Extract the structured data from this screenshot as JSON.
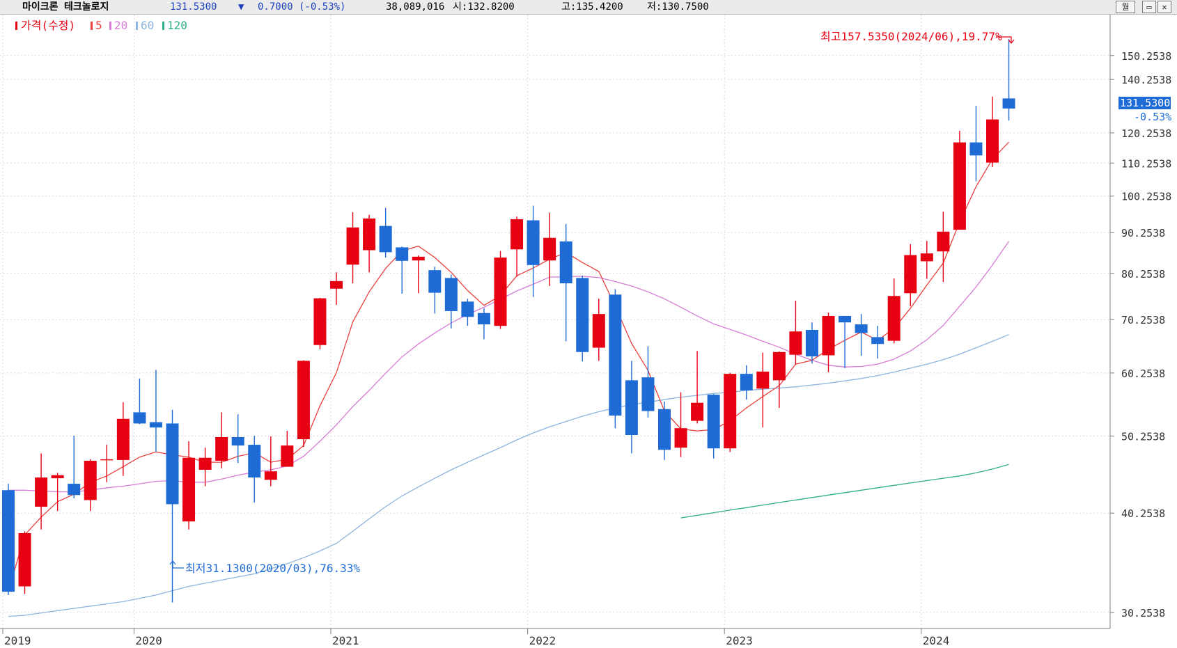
{
  "header": {
    "stock_name": "마이크론 테크놀로지",
    "price": "131.5300",
    "change_arrow": "▼",
    "change": "0.7000 (-0.53%)",
    "volume": "38,089,016",
    "open": "시:132.8200",
    "high": "고:135.4200",
    "low": "저:130.7500",
    "period_button": "월",
    "restore_button": "▭",
    "close_button": "✕"
  },
  "legend": {
    "price_label": "가격(수정)",
    "ma5": "5",
    "ma20": "20",
    "ma60": "60",
    "ma120": "120"
  },
  "colors": {
    "up": "#e60012",
    "down": "#1f6bd6",
    "ma5": "#e8403c",
    "ma20": "#d77bd6",
    "ma60": "#8db4de",
    "ma120": "#2fae8a",
    "axis_text": "#333333",
    "high_annotation": "#e60012",
    "low_annotation": "#1f6bd6"
  },
  "chart_data": {
    "type": "candlestick",
    "scale": "log",
    "grid": true,
    "legend_position": "top-left",
    "ylim": [
      29.5,
      170
    ],
    "y_ticks": [
      30.2538,
      40.2538,
      50.2538,
      60.2538,
      70.2538,
      80.2538,
      90.2538,
      100.2538,
      110.2538,
      120.2538,
      140.2538,
      150.2538
    ],
    "y_tick_labels": [
      "30.2538",
      "40.2538",
      "50.2538",
      "60.2538",
      "70.2538",
      "80.2538",
      "90.2538",
      "100.2538",
      "110.2538",
      "120.2538",
      "140.2538",
      "150.2538"
    ],
    "x_labels": [
      {
        "index": 0,
        "label": "2019"
      },
      {
        "index": 8,
        "label": "2020"
      },
      {
        "index": 20,
        "label": "2021"
      },
      {
        "index": 32,
        "label": "2022"
      },
      {
        "index": 44,
        "label": "2023"
      },
      {
        "index": 56,
        "label": "2024"
      }
    ],
    "current_price_label": "131.5300",
    "current_change_label": "-0.53%",
    "high_annotation": "최고157.5350(2024/06),19.77%",
    "low_annotation": "최저31.1300(2020/03),76.33%",
    "candles": [
      {
        "o": 43.0,
        "h": 43.8,
        "l": 31.8,
        "c": 32.1
      },
      {
        "o": 32.6,
        "h": 38.2,
        "l": 31.9,
        "c": 38.0
      },
      {
        "o": 41.0,
        "h": 47.8,
        "l": 38.4,
        "c": 44.6
      },
      {
        "o": 44.5,
        "h": 45.2,
        "l": 40.5,
        "c": 44.9
      },
      {
        "o": 43.8,
        "h": 50.3,
        "l": 42.0,
        "c": 42.4
      },
      {
        "o": 41.8,
        "h": 47.0,
        "l": 40.5,
        "c": 46.8
      },
      {
        "o": 46.9,
        "h": 49.0,
        "l": 44.0,
        "c": 47.0
      },
      {
        "o": 46.9,
        "h": 55.4,
        "l": 44.8,
        "c": 52.8
      },
      {
        "o": 53.8,
        "h": 59.3,
        "l": 52.0,
        "c": 52.1
      },
      {
        "o": 52.3,
        "h": 60.8,
        "l": 48.0,
        "c": 51.5
      },
      {
        "o": 52.1,
        "h": 54.2,
        "l": 31.13,
        "c": 41.3
      },
      {
        "o": 39.3,
        "h": 49.5,
        "l": 38.4,
        "c": 47.2
      },
      {
        "o": 45.6,
        "h": 48.6,
        "l": 43.5,
        "c": 47.2
      },
      {
        "o": 46.8,
        "h": 53.8,
        "l": 45.8,
        "c": 50.1
      },
      {
        "o": 50.1,
        "h": 53.5,
        "l": 46.5,
        "c": 48.9
      },
      {
        "o": 49.0,
        "h": 50.3,
        "l": 41.5,
        "c": 44.6
      },
      {
        "o": 44.3,
        "h": 50.2,
        "l": 43.5,
        "c": 45.4
      },
      {
        "o": 46.0,
        "h": 51.0,
        "l": 46.0,
        "c": 48.9
      },
      {
        "o": 49.8,
        "h": 62.5,
        "l": 48.7,
        "c": 62.4
      },
      {
        "o": 65.3,
        "h": 74.8,
        "l": 64.5,
        "c": 74.7
      },
      {
        "o": 76.8,
        "h": 80.5,
        "l": 73.3,
        "c": 78.5
      },
      {
        "o": 82.3,
        "h": 95.7,
        "l": 78.0,
        "c": 91.6
      },
      {
        "o": 85.8,
        "h": 95.0,
        "l": 80.5,
        "c": 94.0
      },
      {
        "o": 92.0,
        "h": 96.9,
        "l": 84.0,
        "c": 85.3
      },
      {
        "o": 86.5,
        "h": 86.7,
        "l": 75.7,
        "c": 83.2
      },
      {
        "o": 83.3,
        "h": 84.5,
        "l": 75.8,
        "c": 84.2
      },
      {
        "o": 81.0,
        "h": 81.8,
        "l": 71.5,
        "c": 75.9
      },
      {
        "o": 79.2,
        "h": 80.0,
        "l": 68.5,
        "c": 72.0
      },
      {
        "o": 74.0,
        "h": 74.6,
        "l": 69.0,
        "c": 70.8
      },
      {
        "o": 71.6,
        "h": 72.6,
        "l": 66.4,
        "c": 69.3
      },
      {
        "o": 69.0,
        "h": 85.6,
        "l": 68.4,
        "c": 84.0
      },
      {
        "o": 86.0,
        "h": 94.5,
        "l": 79.5,
        "c": 93.8
      },
      {
        "o": 93.5,
        "h": 97.5,
        "l": 75.0,
        "c": 82.2
      },
      {
        "o": 83.3,
        "h": 95.6,
        "l": 77.4,
        "c": 88.9
      },
      {
        "o": 88.0,
        "h": 92.5,
        "l": 66.0,
        "c": 78.0
      },
      {
        "o": 79.2,
        "h": 79.7,
        "l": 62.3,
        "c": 64.0
      },
      {
        "o": 64.8,
        "h": 74.6,
        "l": 62.4,
        "c": 71.4
      },
      {
        "o": 75.5,
        "h": 76.7,
        "l": 51.4,
        "c": 53.3
      },
      {
        "o": 59.0,
        "h": 62.4,
        "l": 47.8,
        "c": 50.4
      },
      {
        "o": 59.5,
        "h": 65.1,
        "l": 53.0,
        "c": 54.0
      },
      {
        "o": 54.3,
        "h": 55.5,
        "l": 46.9,
        "c": 48.3
      },
      {
        "o": 48.6,
        "h": 57.0,
        "l": 47.3,
        "c": 51.4
      },
      {
        "o": 52.5,
        "h": 64.2,
        "l": 52.1,
        "c": 55.3
      },
      {
        "o": 56.6,
        "h": 56.7,
        "l": 47.1,
        "c": 48.5
      },
      {
        "o": 48.5,
        "h": 60.3,
        "l": 48.0,
        "c": 60.1
      },
      {
        "o": 60.1,
        "h": 61.6,
        "l": 55.8,
        "c": 57.3
      },
      {
        "o": 57.6,
        "h": 63.9,
        "l": 51.5,
        "c": 60.5
      },
      {
        "o": 59.0,
        "h": 64.1,
        "l": 54.5,
        "c": 64.0
      },
      {
        "o": 63.5,
        "h": 74.2,
        "l": 61.7,
        "c": 67.9
      },
      {
        "o": 68.2,
        "h": 69.7,
        "l": 61.9,
        "c": 63.2
      },
      {
        "o": 63.4,
        "h": 71.7,
        "l": 60.4,
        "c": 71.0
      },
      {
        "o": 71.0,
        "h": 71.0,
        "l": 61.1,
        "c": 69.7
      },
      {
        "o": 69.3,
        "h": 71.4,
        "l": 63.3,
        "c": 67.6
      },
      {
        "o": 66.8,
        "h": 69.0,
        "l": 62.8,
        "c": 65.5
      },
      {
        "o": 66.1,
        "h": 79.1,
        "l": 65.6,
        "c": 75.2
      },
      {
        "o": 75.8,
        "h": 87.3,
        "l": 73.0,
        "c": 84.6
      },
      {
        "o": 83.1,
        "h": 88.1,
        "l": 79.0,
        "c": 85.0
      },
      {
        "o": 85.5,
        "h": 95.9,
        "l": 78.3,
        "c": 90.5
      },
      {
        "o": 91.0,
        "h": 121.0,
        "l": 91.0,
        "c": 117.0
      },
      {
        "o": 117.0,
        "h": 130.0,
        "l": 104.6,
        "c": 112.7
      },
      {
        "o": 110.4,
        "h": 133.5,
        "l": 109.0,
        "c": 125.0
      },
      {
        "o": 132.8,
        "h": 157.535,
        "l": 124.6,
        "c": 129.0
      }
    ],
    "ma5": [
      32.1,
      37.8,
      39.8,
      41.6,
      42.5,
      44.0,
      44.8,
      46.0,
      47.3,
      48.0,
      47.6,
      47.3,
      46.6,
      46.6,
      47.4,
      47.9,
      46.6,
      47.0,
      48.9,
      54.8,
      60.3,
      69.8,
      76.1,
      81.4,
      85.6,
      86.8,
      84.0,
      80.5,
      76.4,
      73.2,
      75.3,
      79.7,
      81.5,
      83.6,
      85.2,
      82.8,
      80.7,
      73.0,
      65.6,
      60.7,
      54.0,
      51.3,
      51.0,
      51.2,
      52.5,
      54.5,
      56.3,
      58.1,
      61.8,
      62.5,
      64.5,
      66.2,
      67.8,
      66.2,
      68.5,
      72.6,
      77.6,
      82.7,
      93.1,
      103.0,
      111.5,
      117.1
    ],
    "ma20": [
      43.0,
      43.0,
      42.9,
      42.8,
      42.8,
      43.0,
      43.3,
      43.5,
      43.8,
      44.1,
      44.2,
      44.0,
      44.0,
      44.4,
      44.9,
      45.3,
      45.6,
      46.1,
      47.4,
      49.5,
      51.9,
      54.7,
      57.3,
      60.2,
      63.1,
      65.5,
      67.6,
      69.6,
      71.3,
      72.8,
      74.5,
      76.3,
      77.8,
      79.4,
      79.5,
      79.6,
      79.3,
      78.4,
      77.4,
      76.1,
      74.6,
      72.8,
      71.0,
      69.4,
      68.3,
      67.2,
      66.0,
      64.9,
      63.6,
      62.5,
      61.6,
      61.3,
      61.4,
      61.8,
      62.7,
      64.2,
      66.3,
      69.1,
      73.0,
      77.2,
      82.2,
      88.0
    ],
    "ma60_start": 0,
    "ma60": [
      29.9,
      30.0,
      30.2,
      30.4,
      30.6,
      30.8,
      31.0,
      31.2,
      31.5,
      31.8,
      32.2,
      32.6,
      32.9,
      33.2,
      33.5,
      33.8,
      34.3,
      34.8,
      35.4,
      36.1,
      36.9,
      38.2,
      39.6,
      41.0,
      42.3,
      43.4,
      44.5,
      45.6,
      46.6,
      47.6,
      48.6,
      49.7,
      50.7,
      51.6,
      52.4,
      53.2,
      53.9,
      54.5,
      55.0,
      55.4,
      55.8,
      56.2,
      56.5,
      56.8,
      57.0,
      57.3,
      57.5,
      57.7,
      57.9,
      58.2,
      58.5,
      58.9,
      59.3,
      59.8,
      60.4,
      61.1,
      61.8,
      62.6,
      63.6,
      64.8,
      66.0,
      67.3
    ],
    "ma120_start": 41,
    "ma120": [
      39.7,
      40.0,
      40.3,
      40.6,
      40.9,
      41.2,
      41.5,
      41.8,
      42.1,
      42.4,
      42.7,
      43.0,
      43.3,
      43.6,
      43.9,
      44.2,
      44.5,
      44.8,
      45.2,
      45.7,
      46.3
    ]
  }
}
